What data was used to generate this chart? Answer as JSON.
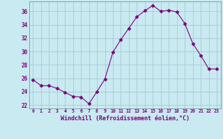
{
  "hours": [
    0,
    1,
    2,
    3,
    4,
    5,
    6,
    7,
    8,
    9,
    10,
    11,
    12,
    13,
    14,
    15,
    16,
    17,
    18,
    19,
    20,
    21,
    22,
    23
  ],
  "windchill": [
    25.8,
    24.9,
    24.9,
    24.5,
    23.9,
    23.3,
    23.2,
    22.2,
    24.0,
    25.9,
    29.9,
    31.8,
    33.5,
    35.2,
    36.1,
    36.9,
    36.0,
    36.2,
    35.9,
    34.2,
    31.2,
    29.4,
    27.4,
    27.4
  ],
  "line_color": "#7B007B",
  "marker": "D",
  "marker_size": 2.5,
  "bg_color": "#c8eaf0",
  "grid_color": "#a8c8d8",
  "xlabel": "Windchill (Refroidissement éolien,°C)",
  "xlabel_color": "#7B007B",
  "tick_color": "#7B007B",
  "ylim": [
    21.5,
    37.5
  ],
  "yticks": [
    22,
    24,
    26,
    28,
    30,
    32,
    34,
    36
  ],
  "xticks": [
    0,
    1,
    2,
    3,
    4,
    5,
    6,
    7,
    8,
    9,
    10,
    11,
    12,
    13,
    14,
    15,
    16,
    17,
    18,
    19,
    20,
    21,
    22,
    23
  ]
}
